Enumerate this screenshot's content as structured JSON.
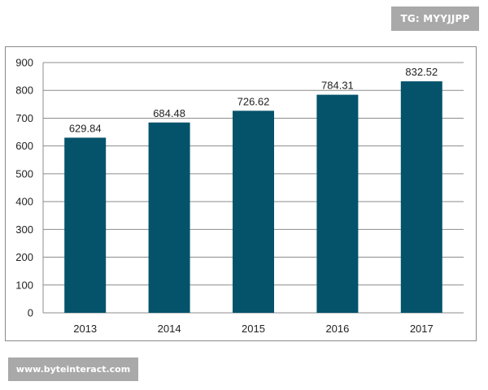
{
  "watermark_top": "TG: MYYJJPP",
  "watermark_bottom": "www.byteinteract.com",
  "chart_data": {
    "type": "bar",
    "categories": [
      "2013",
      "2014",
      "2015",
      "2016",
      "2017"
    ],
    "values": [
      629.84,
      684.48,
      726.62,
      784.31,
      832.52
    ],
    "value_labels": [
      "629.84",
      "684.48",
      "726.62",
      "784.31",
      "832.52"
    ],
    "title": "",
    "xlabel": "",
    "ylabel": "",
    "ylim": [
      0,
      900
    ],
    "yticks": [
      0,
      100,
      200,
      300,
      400,
      500,
      600,
      700,
      800,
      900
    ],
    "grid": true,
    "bar_color": "#04536b"
  }
}
